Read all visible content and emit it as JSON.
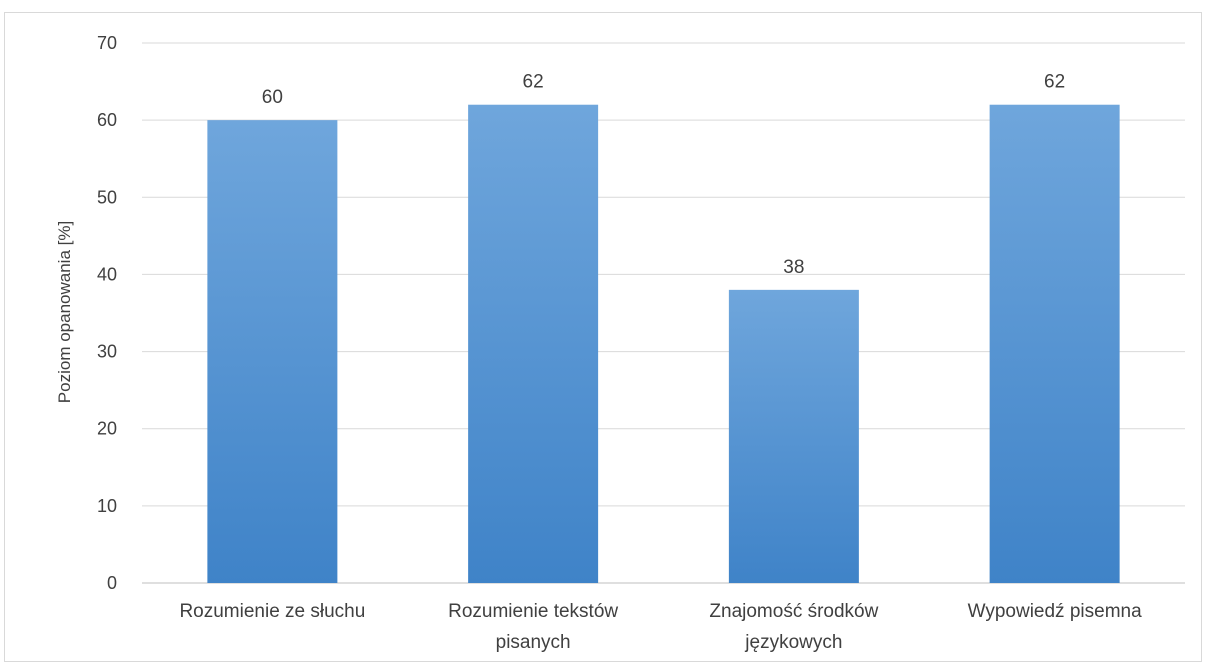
{
  "chart_data": {
    "type": "bar",
    "title": "",
    "xlabel": "",
    "ylabel": "Poziom opanowania [%]",
    "ylim": [
      0,
      70
    ],
    "yticks": [
      0,
      10,
      20,
      30,
      40,
      50,
      60,
      70
    ],
    "grid": true,
    "categories": [
      [
        "Rozumienie ze słuchu"
      ],
      [
        "Rozumienie tekstów",
        "pisanych"
      ],
      [
        "Znajomość środków",
        "językowych"
      ],
      [
        "Wypowiedź pisemna"
      ]
    ],
    "values": [
      60,
      62,
      38,
      62
    ],
    "data_labels": [
      "60",
      "62",
      "38",
      "62"
    ],
    "colors": {
      "bar_top": "#6fa6dc",
      "bar_bottom": "#3f83c8",
      "grid": "#d9d9d9",
      "axis": "#bfbfbf",
      "text": "#404040"
    }
  }
}
